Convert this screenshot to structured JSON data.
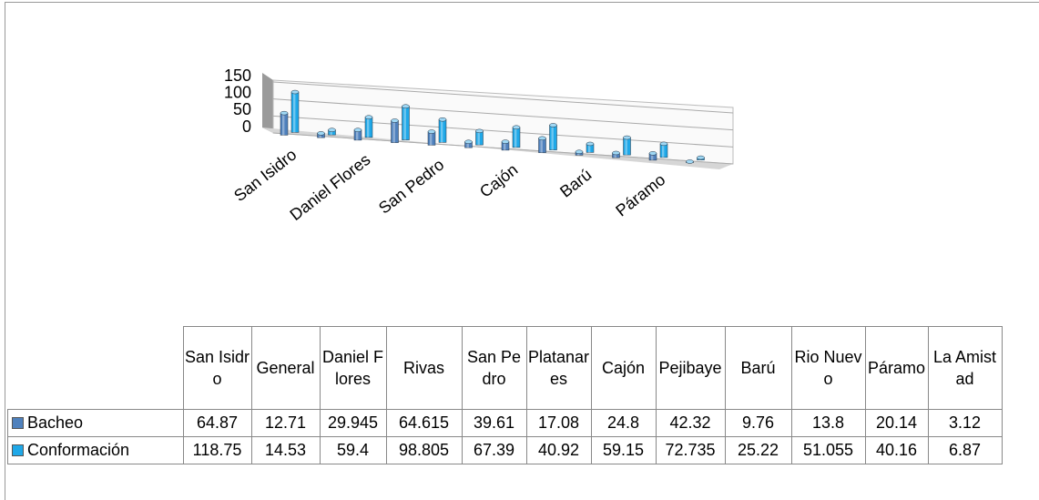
{
  "chart_data": {
    "type": "bar3d",
    "categories": [
      "San Isidro",
      "General",
      "Daniel Flores",
      "Rivas",
      "San Pedro",
      "Platanares",
      "Cajón",
      "Pejibaye",
      "Barú",
      "Rio Nuevo",
      "Páramo",
      "La Amistad"
    ],
    "series": [
      {
        "name": "Bacheo",
        "color": "#4f81bd",
        "values": [
          64.87,
          12.71,
          29.945,
          64.615,
          39.61,
          17.08,
          24.8,
          42.32,
          9.76,
          13.8,
          20.14,
          3.12
        ]
      },
      {
        "name": "Conformación",
        "color": "#1fa8e8",
        "values": [
          118.75,
          14.53,
          59.4,
          98.805,
          67.39,
          40.92,
          59.15,
          72.735,
          25.22,
          51.055,
          40.16,
          6.87
        ]
      }
    ],
    "ylim": [
      0,
      150
    ],
    "yticks": [
      0,
      50,
      100,
      150
    ],
    "grid": true,
    "data_table": true
  }
}
